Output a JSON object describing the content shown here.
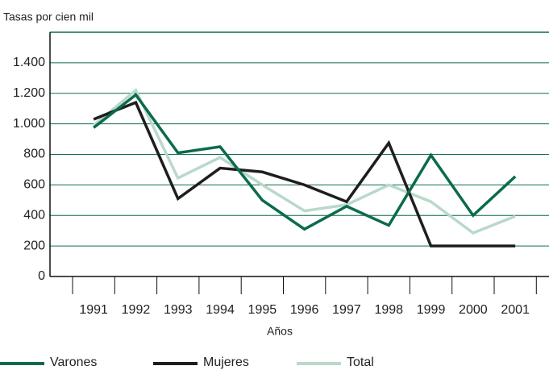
{
  "chart_data": {
    "type": "line",
    "y_label": "Tasas por cien mil",
    "x_label": "Años",
    "categories": [
      "1991",
      "1992",
      "1993",
      "1994",
      "1995",
      "1996",
      "1997",
      "1998",
      "1999",
      "2000",
      "2001"
    ],
    "series": [
      {
        "name": "Varones",
        "color": "#0b6b4c",
        "values": [
          975,
          1190,
          810,
          850,
          500,
          310,
          460,
          335,
          795,
          400,
          655
        ]
      },
      {
        "name": "Mujeres",
        "color": "#1e1e1e",
        "values": [
          1030,
          1140,
          510,
          710,
          685,
          600,
          490,
          875,
          200,
          200,
          200
        ]
      },
      {
        "name": "Total",
        "color": "#b9d9c9",
        "values": [
          990,
          1220,
          645,
          780,
          600,
          430,
          470,
          600,
          490,
          285,
          395
        ]
      }
    ],
    "ylim": [
      0,
      1600
    ],
    "yticks": [
      0,
      200,
      400,
      600,
      800,
      {
        "value": 1000,
        "label": "1.000"
      },
      {
        "value": 1200,
        "label": "1.200"
      },
      {
        "value": 1400,
        "label": "1.400"
      }
    ],
    "grid": true
  }
}
